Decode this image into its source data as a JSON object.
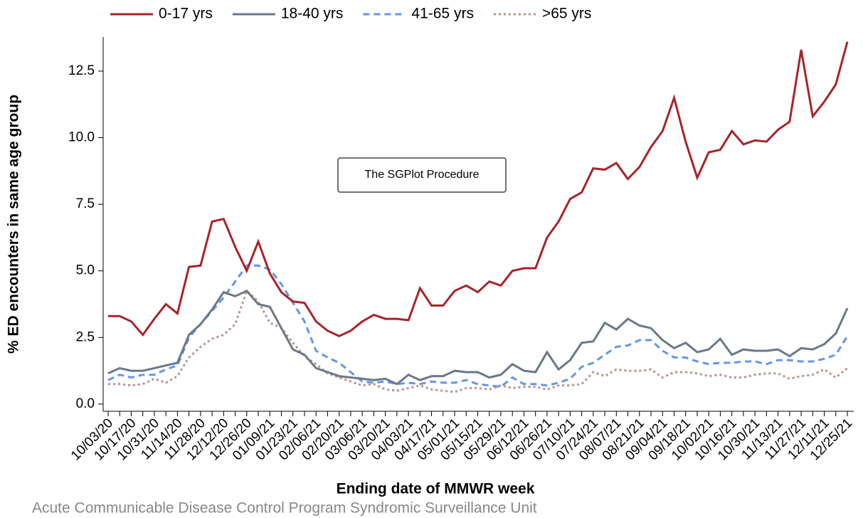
{
  "chart_data": {
    "type": "line",
    "y_label": "% ED encounters in same age group",
    "x_label": "Ending date of MMWR week",
    "annotation": "The SGPlot Procedure",
    "footer": "Acute Communicable Disease Control Program Syndromic Surveillance Unit",
    "categories": [
      "10/03/20",
      null,
      "10/17/20",
      null,
      "10/31/20",
      null,
      "11/14/20",
      null,
      "11/28/20",
      null,
      "12/12/20",
      null,
      "12/26/20",
      null,
      "01/09/21",
      null,
      "01/23/21",
      null,
      "02/06/21",
      null,
      "02/20/21",
      null,
      "03/06/21",
      null,
      "03/20/21",
      null,
      "04/03/21",
      null,
      "04/17/21",
      null,
      "05/01/21",
      null,
      "05/15/21",
      null,
      "05/29/21",
      null,
      "06/12/21",
      null,
      "06/26/21",
      null,
      "07/10/21",
      null,
      "07/24/21",
      null,
      "08/07/21",
      null,
      "08/21/21",
      null,
      "09/04/21",
      null,
      "09/18/21",
      null,
      "10/02/21",
      null,
      "10/16/21",
      null,
      "10/30/21",
      null,
      "11/13/21",
      null,
      "11/27/21",
      null,
      "12/11/21",
      null,
      "12/25/21"
    ],
    "series": [
      {
        "name": "0-17 yrs",
        "color": "#a8232a",
        "dash": "solid",
        "values": [
          3.3,
          3.3,
          3.1,
          2.6,
          3.2,
          3.75,
          3.4,
          5.15,
          5.2,
          6.85,
          6.95,
          5.9,
          5.0,
          6.1,
          4.9,
          4.2,
          3.85,
          3.8,
          3.1,
          2.75,
          2.55,
          2.75,
          3.1,
          3.35,
          3.2,
          3.2,
          3.15,
          4.35,
          3.7,
          3.7,
          4.25,
          4.45,
          4.2,
          4.6,
          4.45,
          5.0,
          5.1,
          5.1,
          6.25,
          6.85,
          7.7,
          7.95,
          8.85,
          8.8,
          9.05,
          8.45,
          8.9,
          9.65,
          10.25,
          11.5,
          9.85,
          8.5,
          9.45,
          9.55,
          10.25,
          9.75,
          9.9,
          9.85,
          10.3,
          10.6,
          13.3,
          10.8,
          11.35,
          12.0,
          13.6
        ]
      },
      {
        "name": "18-40 yrs",
        "color": "#6b7888",
        "dash": "solid",
        "values": [
          1.15,
          1.35,
          1.25,
          1.25,
          1.35,
          1.45,
          1.55,
          2.6,
          3.0,
          3.55,
          4.2,
          4.05,
          4.25,
          3.75,
          3.65,
          2.85,
          2.05,
          1.85,
          1.35,
          1.2,
          1.05,
          1.0,
          0.95,
          0.9,
          0.95,
          0.75,
          1.1,
          0.9,
          1.05,
          1.05,
          1.25,
          1.2,
          1.2,
          1.0,
          1.1,
          1.5,
          1.25,
          1.2,
          1.95,
          1.3,
          1.65,
          2.3,
          2.35,
          3.05,
          2.8,
          3.2,
          2.95,
          2.85,
          2.4,
          2.1,
          2.3,
          1.95,
          2.05,
          2.45,
          1.85,
          2.05,
          2.0,
          2.0,
          2.05,
          1.8,
          2.1,
          2.05,
          2.25,
          2.65,
          3.6
        ]
      },
      {
        "name": "41-65 yrs",
        "color": "#6495ed",
        "dash": "dashed",
        "values": [
          0.9,
          1.1,
          1.0,
          1.1,
          1.1,
          1.3,
          1.45,
          2.5,
          3.0,
          3.5,
          4.0,
          4.6,
          5.2,
          5.2,
          5.05,
          4.5,
          3.8,
          3.1,
          2.0,
          1.75,
          1.55,
          1.2,
          0.85,
          0.8,
          0.85,
          0.75,
          0.8,
          0.75,
          0.85,
          0.8,
          0.8,
          0.9,
          0.75,
          0.7,
          0.65,
          1.0,
          0.75,
          0.75,
          0.7,
          0.8,
          0.95,
          1.4,
          1.55,
          1.85,
          2.15,
          2.2,
          2.4,
          2.4,
          2.0,
          1.75,
          1.75,
          1.6,
          1.5,
          1.55,
          1.55,
          1.6,
          1.6,
          1.5,
          1.65,
          1.65,
          1.6,
          1.6,
          1.7,
          1.85,
          2.55
        ]
      },
      {
        "name": ">65 yrs",
        "color": "#bc8f8f",
        "dash": "dotted",
        "values": [
          0.75,
          0.75,
          0.7,
          0.75,
          0.95,
          0.8,
          1.05,
          1.75,
          2.15,
          2.45,
          2.6,
          3.0,
          4.25,
          3.85,
          3.05,
          2.85,
          2.3,
          1.8,
          1.5,
          1.15,
          1.0,
          0.85,
          0.7,
          0.75,
          0.55,
          0.5,
          0.6,
          0.7,
          0.55,
          0.5,
          0.45,
          0.6,
          0.6,
          0.55,
          0.7,
          0.6,
          0.65,
          0.65,
          0.55,
          0.7,
          0.7,
          0.75,
          1.2,
          1.05,
          1.3,
          1.25,
          1.25,
          1.3,
          1.0,
          1.2,
          1.2,
          1.15,
          1.05,
          1.1,
          1.0,
          1.0,
          1.1,
          1.15,
          1.15,
          0.95,
          1.05,
          1.1,
          1.3,
          1.0,
          1.35
        ]
      }
    ],
    "ylim": [
      -0.27,
      13.78
    ],
    "yticks": [
      {
        "value": 0,
        "label": "0.0"
      },
      2.5,
      {
        "value": 5,
        "label": "5.0"
      },
      7.5,
      {
        "value": 10,
        "label": "10.0"
      },
      12.5
    ],
    "legend": "top"
  }
}
